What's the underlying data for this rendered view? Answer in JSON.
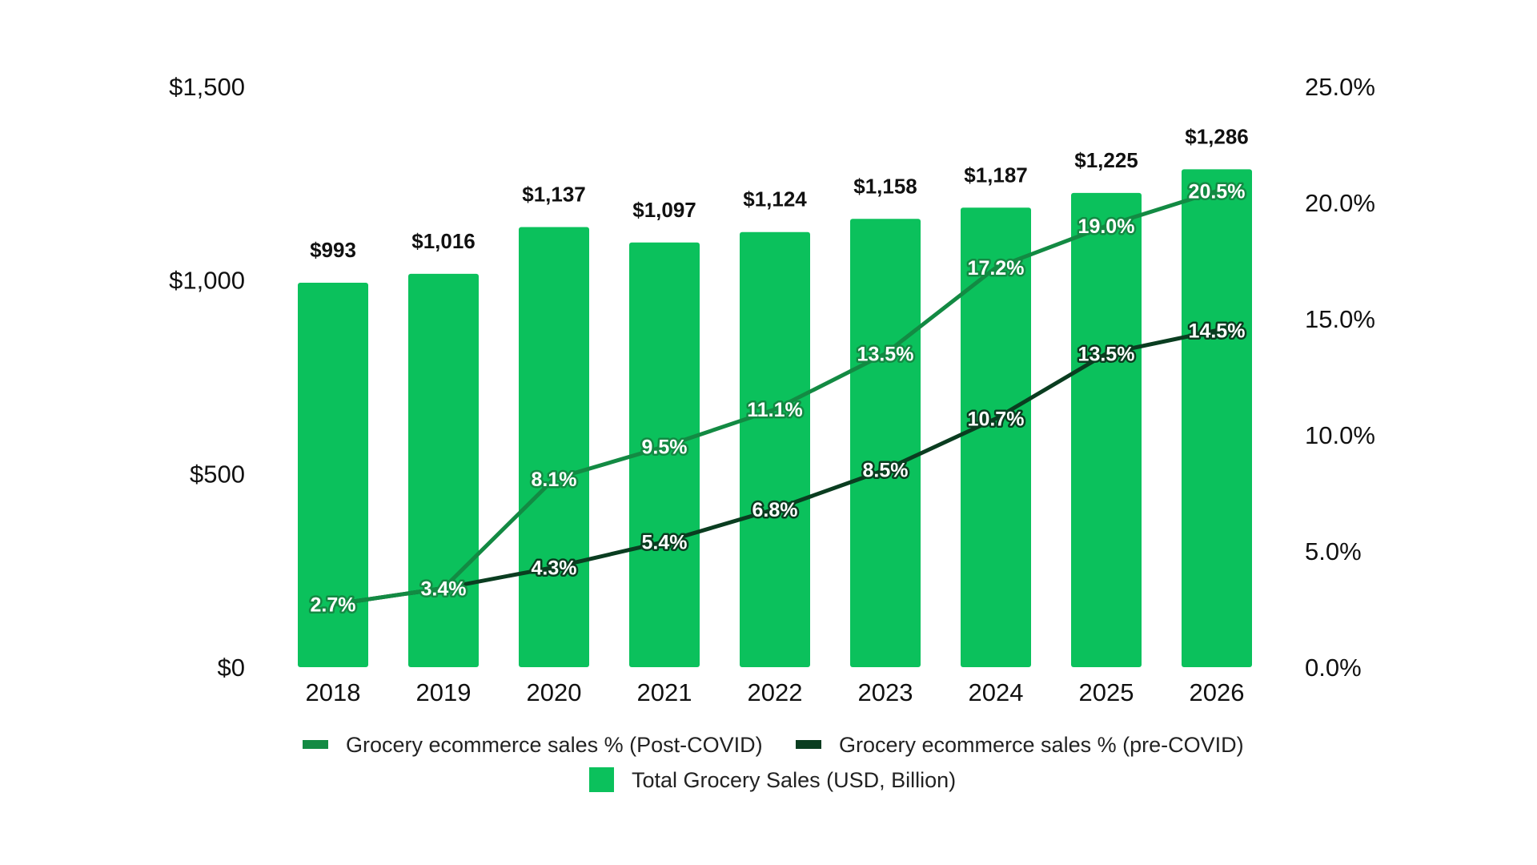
{
  "chart_data": {
    "type": "bar+line",
    "categories": [
      "2018",
      "2019",
      "2020",
      "2021",
      "2022",
      "2023",
      "2024",
      "2025",
      "2026"
    ],
    "bar_series": {
      "name": "Total Grocery Sales (USD, Billion)",
      "values": [
        993,
        1016,
        1137,
        1097,
        1124,
        1158,
        1187,
        1225,
        1286
      ],
      "labels": [
        "$993",
        "$1,016",
        "$1,137",
        "$1,097",
        "$1,124",
        "$1,158",
        "$1,187",
        "$1,225",
        "$1,286"
      ],
      "color": "#0bc15c"
    },
    "line_series": [
      {
        "name": "Grocery ecommerce sales % (Post-COVID)",
        "values": [
          2.7,
          3.4,
          8.1,
          9.5,
          11.1,
          13.5,
          17.2,
          19.0,
          20.5
        ],
        "labels": [
          "2.7%",
          "3.4%",
          "8.1%",
          "9.5%",
          "11.1%",
          "13.5%",
          "17.2%",
          "19.0%",
          "20.5%"
        ],
        "color": "#138a43"
      },
      {
        "name": "Grocery ecommerce sales % (pre-COVID)",
        "values": [
          2.7,
          3.4,
          4.3,
          5.4,
          6.8,
          8.5,
          10.7,
          13.5,
          14.5
        ],
        "labels": [
          "2.7%",
          "3.4%",
          "4.3%",
          "5.4%",
          "6.8%",
          "8.5%",
          "10.7%",
          "13.5%",
          "14.5%"
        ],
        "color": "#0a3d20"
      }
    ],
    "y_left": {
      "range": [
        0,
        1500
      ],
      "ticks": [
        0,
        500,
        1000,
        1500
      ],
      "tick_labels": [
        "$0",
        "$500",
        "$1,000",
        "$1,500"
      ]
    },
    "y_right": {
      "range": [
        0,
        25
      ],
      "ticks": [
        0,
        5,
        10,
        15,
        20,
        25
      ],
      "tick_labels": [
        "0.0%",
        "5.0%",
        "10.0%",
        "15.0%",
        "20.0%",
        "25.0%"
      ]
    },
    "grid": false,
    "legend_placement": "bottom"
  }
}
